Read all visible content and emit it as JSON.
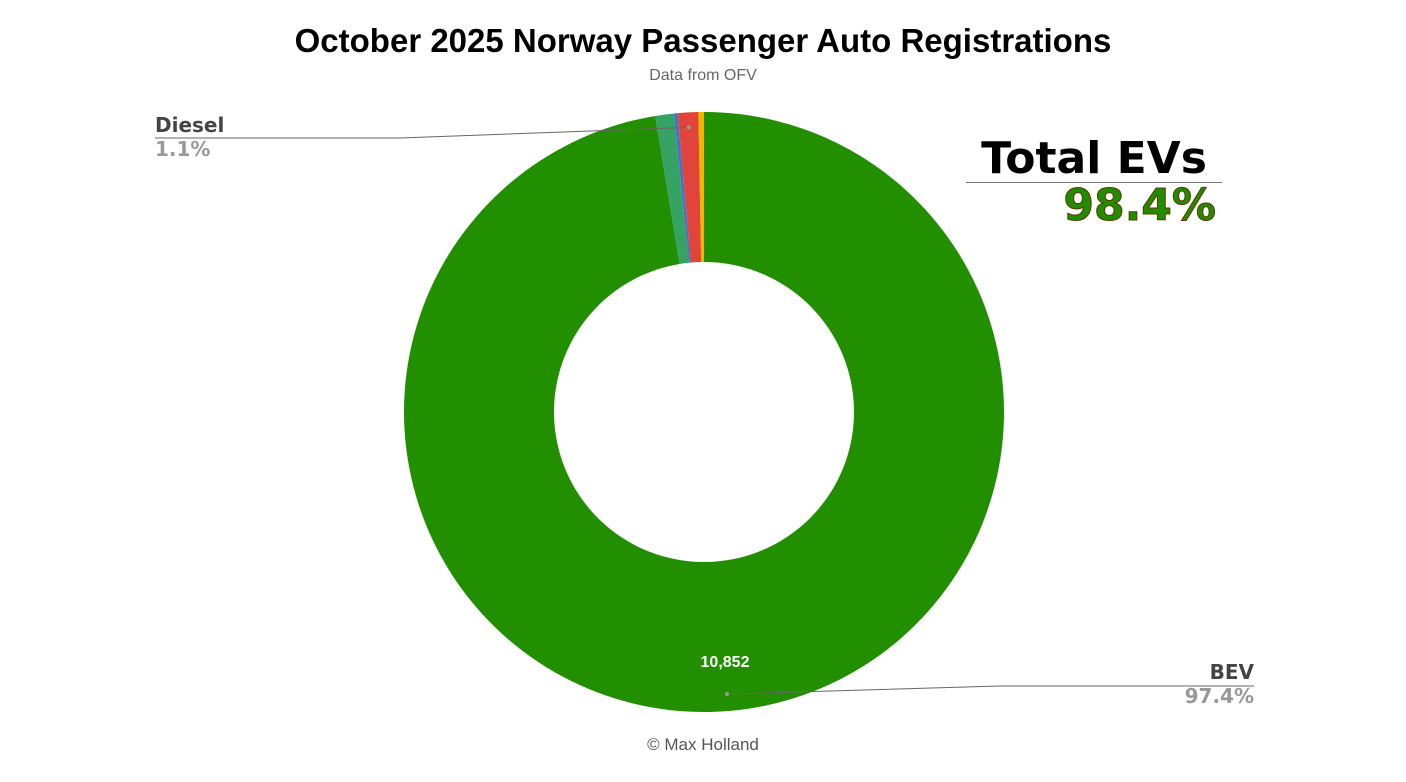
{
  "chart_data": {
    "type": "pie",
    "donut": true,
    "title": "October 2025 Norway Passenger Auto Registrations",
    "subtitle": "Data from OFV",
    "footer": "© Max Holland",
    "slices": [
      {
        "name": "BEV",
        "percent": 97.4,
        "value_label": "10,852",
        "percent_label": "97.4%",
        "color": "#228f00"
      },
      {
        "percent": 1.0,
        "color": "#34a364"
      },
      {
        "percent": 0.2,
        "color": "#4a6fc7"
      },
      {
        "name": "Diesel",
        "percent": 1.1,
        "percent_label": "1.1%",
        "color": "#e0443a"
      },
      {
        "percent": 0.3,
        "color": "#f4b400"
      }
    ],
    "annotation": {
      "title": "Total EVs",
      "value": "98.4%",
      "color": "#228b00"
    }
  }
}
